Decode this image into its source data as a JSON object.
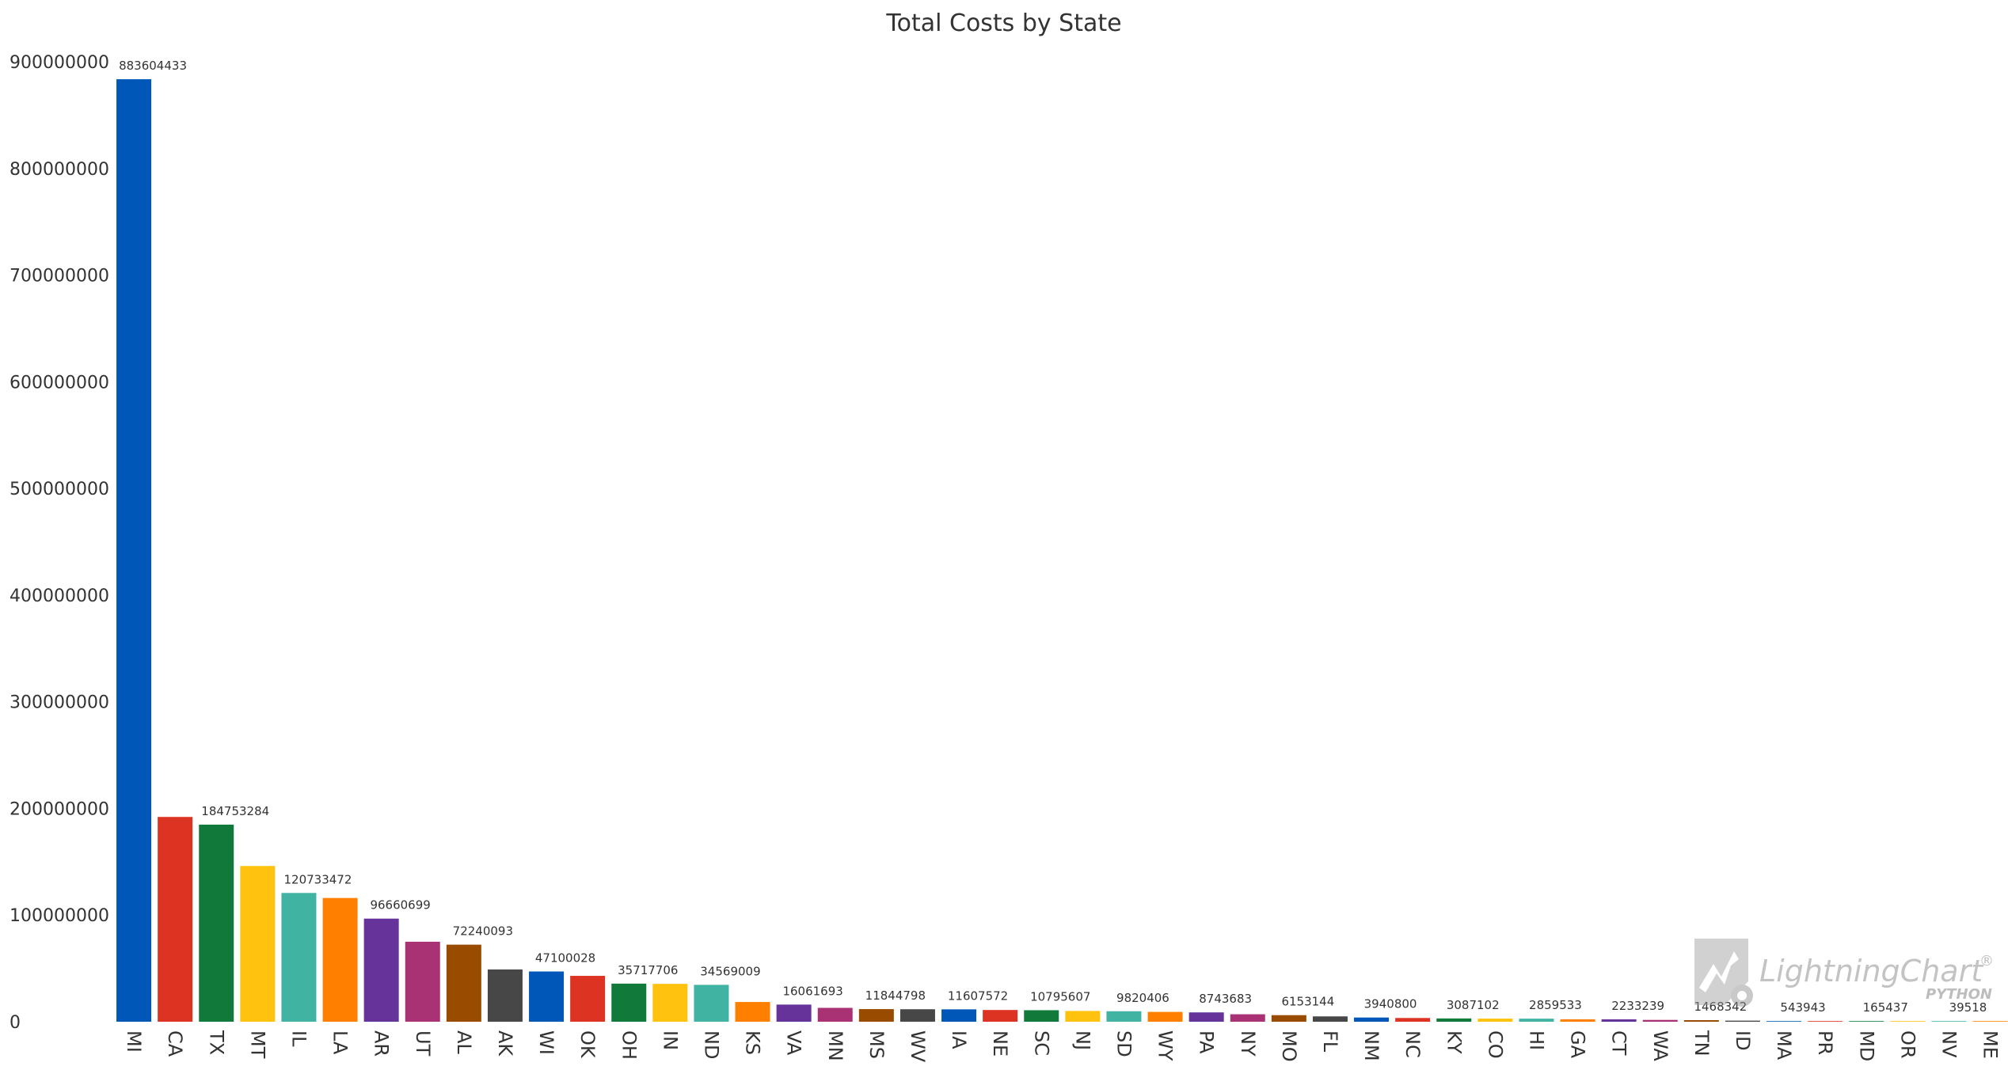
{
  "chart_data": {
    "type": "bar",
    "title": "Total Costs by State",
    "xlabel": "",
    "ylabel": "",
    "ylim": [
      0,
      900000000
    ],
    "yticks": [
      0,
      100000000,
      200000000,
      300000000,
      400000000,
      500000000,
      600000000,
      700000000,
      800000000,
      900000000
    ],
    "ytick_labels": [
      "0",
      "100000000",
      "200000000",
      "300000000",
      "400000000",
      "500000000",
      "600000000",
      "700000000",
      "800000000",
      "900000000"
    ],
    "grid": false,
    "categories": [
      "MI",
      "CA",
      "TX",
      "MT",
      "IL",
      "LA",
      "AR",
      "UT",
      "AL",
      "AK",
      "WI",
      "OK",
      "OH",
      "IN",
      "ND",
      "KS",
      "VA",
      "MN",
      "MS",
      "WV",
      "IA",
      "NE",
      "SC",
      "NJ",
      "SD",
      "WY",
      "PA",
      "NY",
      "MO",
      "FL",
      "NM",
      "NC",
      "KY",
      "CO",
      "HI",
      "GA",
      "CT",
      "WA",
      "TN",
      "ID",
      "MA",
      "PR",
      "MD",
      "OR",
      "NV",
      "ME"
    ],
    "values": [
      883604433,
      192000000,
      184753284,
      146000000,
      120733472,
      116000000,
      96660699,
      75000000,
      72240093,
      49000000,
      47100028,
      43000000,
      35717706,
      35500000,
      34569009,
      18500000,
      16061693,
      13000000,
      11844798,
      11700000,
      11607572,
      11000000,
      10795607,
      10100000,
      9820406,
      9200000,
      8743683,
      7000000,
      6153144,
      5000000,
      3940800,
      3500000,
      3087102,
      2900000,
      2859533,
      2300000,
      2233239,
      1700000,
      1468342,
      1000000,
      543943,
      200000,
      165437,
      40000,
      39518,
      10000
    ],
    "data_labels": [
      "883604433",
      "",
      "184753284",
      "",
      "120733472",
      "",
      "96660699",
      "",
      "72240093",
      "",
      "47100028",
      "",
      "35717706",
      "",
      "34569009",
      "",
      "16061693",
      "",
      "11844798",
      "",
      "11607572",
      "",
      "10795607",
      "",
      "9820406",
      "",
      "8743683",
      "",
      "6153144",
      "",
      "3940800",
      "",
      "3087102",
      "",
      "2859533",
      "",
      "2233239",
      "",
      "1468342",
      "",
      "543943",
      "",
      "165437",
      "",
      "39518",
      ""
    ],
    "colors": [
      "#0057b7",
      "#dd3322",
      "#117a3a",
      "#ffc20e",
      "#41b3a3",
      "#ff8000",
      "#653399",
      "#a93275",
      "#994c00",
      "#474747"
    ],
    "legend": "none"
  },
  "watermark": {
    "brand": "LightningChart",
    "sub": "PYTHON",
    "mark": "®"
  }
}
